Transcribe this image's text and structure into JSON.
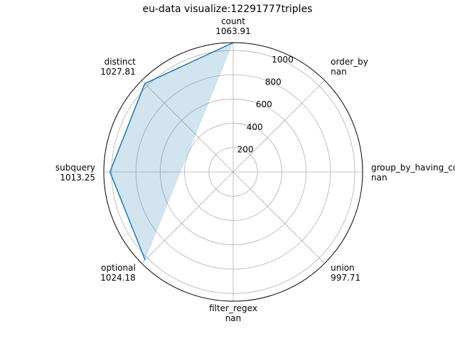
{
  "chart_data": {
    "type": "radar",
    "title": "eu-data visualize:12291777triples",
    "axes": [
      {
        "name": "count",
        "value": 1063.91,
        "value_label": "1063.91"
      },
      {
        "name": "order_by",
        "value": null,
        "value_label": "nan"
      },
      {
        "name": "group_by_having_count_distinct",
        "value": null,
        "value_label": "nan"
      },
      {
        "name": "union",
        "value": 997.71,
        "value_label": "997.71"
      },
      {
        "name": "filter_regex",
        "value": null,
        "value_label": "nan"
      },
      {
        "name": "optional",
        "value": 1024.18,
        "value_label": "1024.18"
      },
      {
        "name": "subquery",
        "value": 1013.25,
        "value_label": "1013.25"
      },
      {
        "name": "distinct",
        "value": 1027.81,
        "value_label": "1027.81"
      }
    ],
    "radial_ticks": [
      200,
      400,
      600,
      800,
      1000
    ],
    "rlim": [
      0,
      1063.91
    ],
    "grid": true,
    "line_color": "#1f77b4",
    "fill_color": "#1f77b4"
  }
}
